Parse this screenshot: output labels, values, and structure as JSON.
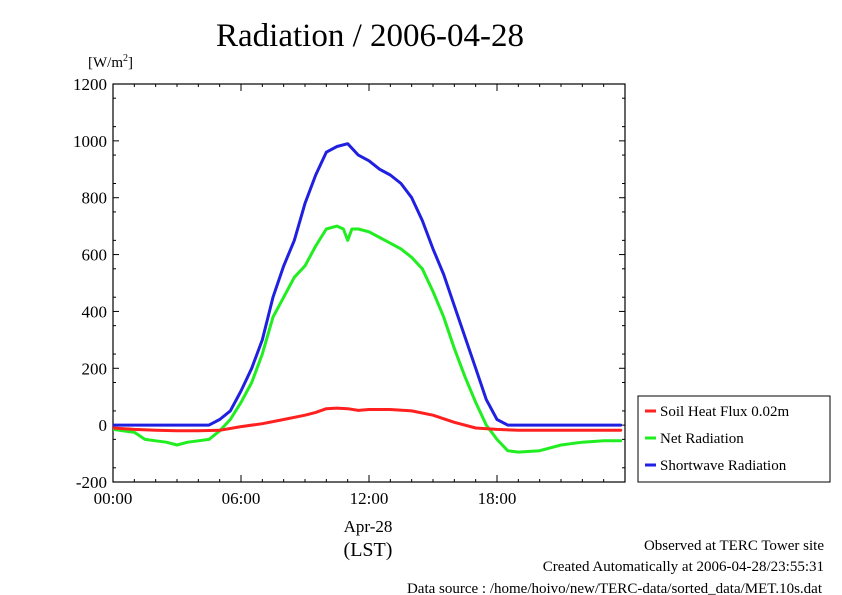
{
  "chart_data": {
    "type": "line",
    "title": "Radiation / 2006-04-28",
    "ylabel_unit": "[W/m",
    "ylabel_sup": "2",
    "ylabel_close": "]",
    "ylim": [
      -200,
      1200
    ],
    "y_ticks": [
      "-200",
      "0",
      "200",
      "400",
      "600",
      "800",
      "1000",
      "1200"
    ],
    "xlim": [
      0,
      24
    ],
    "x_tick_values": [
      0,
      6,
      12,
      18
    ],
    "x_ticks": [
      "00:00",
      "06:00",
      "12:00",
      "18:00"
    ],
    "x_date_label": "Apr-28",
    "x_timezone_label": "(LST)",
    "legend_position": "right",
    "series": [
      {
        "name": "Soil Heat Flux 0.02m",
        "color": "#ff2020",
        "x": [
          0,
          1,
          2,
          3,
          4,
          5,
          6,
          7,
          8,
          9,
          9.5,
          10,
          10.5,
          11,
          11.5,
          12,
          13,
          14,
          15,
          16,
          17,
          18,
          19,
          20,
          21,
          22,
          23,
          23.8
        ],
        "values": [
          -10,
          -15,
          -18,
          -20,
          -20,
          -18,
          -5,
          5,
          20,
          35,
          45,
          58,
          60,
          58,
          52,
          55,
          55,
          50,
          35,
          10,
          -10,
          -15,
          -18,
          -18,
          -18,
          -18,
          -18,
          -18
        ]
      },
      {
        "name": "Net Radiation",
        "color": "#20ee20",
        "x": [
          0,
          1,
          1.5,
          2,
          2.5,
          3,
          3.5,
          4,
          4.5,
          5,
          5.5,
          6,
          6.5,
          7,
          7.5,
          8,
          8.5,
          9,
          9.5,
          10,
          10.5,
          10.8,
          11,
          11.2,
          11.5,
          12,
          12.5,
          13,
          13.5,
          14,
          14.5,
          15,
          15.5,
          16,
          16.5,
          17,
          17.5,
          18,
          18.5,
          19,
          20,
          21,
          22,
          23,
          23.8
        ],
        "values": [
          -15,
          -25,
          -50,
          -55,
          -60,
          -70,
          -60,
          -55,
          -50,
          -20,
          20,
          80,
          150,
          250,
          380,
          450,
          520,
          560,
          630,
          690,
          700,
          690,
          650,
          690,
          690,
          680,
          660,
          640,
          620,
          590,
          550,
          470,
          380,
          270,
          170,
          80,
          0,
          -50,
          -90,
          -95,
          -90,
          -70,
          -60,
          -55,
          -55
        ]
      },
      {
        "name": "Shortwave Radiation",
        "color": "#2020e0",
        "x": [
          0,
          1,
          2,
          3,
          4,
          4.5,
          5,
          5.5,
          6,
          6.5,
          7,
          7.5,
          8,
          8.5,
          9,
          9.5,
          10,
          10.5,
          11,
          11.5,
          12,
          12.5,
          13,
          13.5,
          14,
          14.5,
          15,
          15.5,
          16,
          16.5,
          17,
          17.5,
          18,
          18.5,
          19,
          20,
          21,
          22,
          23,
          23.8
        ],
        "values": [
          0,
          0,
          0,
          0,
          0,
          0,
          20,
          50,
          120,
          200,
          300,
          450,
          560,
          650,
          780,
          880,
          960,
          980,
          990,
          950,
          930,
          900,
          880,
          850,
          800,
          720,
          620,
          530,
          420,
          310,
          200,
          90,
          20,
          0,
          0,
          0,
          0,
          0,
          0,
          0
        ]
      }
    ]
  },
  "footer": {
    "line1": "Observed at TERC Tower site",
    "line2": "Created Automatically at 2006-04-28/23:55:31",
    "line3": "Data source : /home/hoivo/new/TERC-data/sorted_data/MET.10s.dat"
  }
}
